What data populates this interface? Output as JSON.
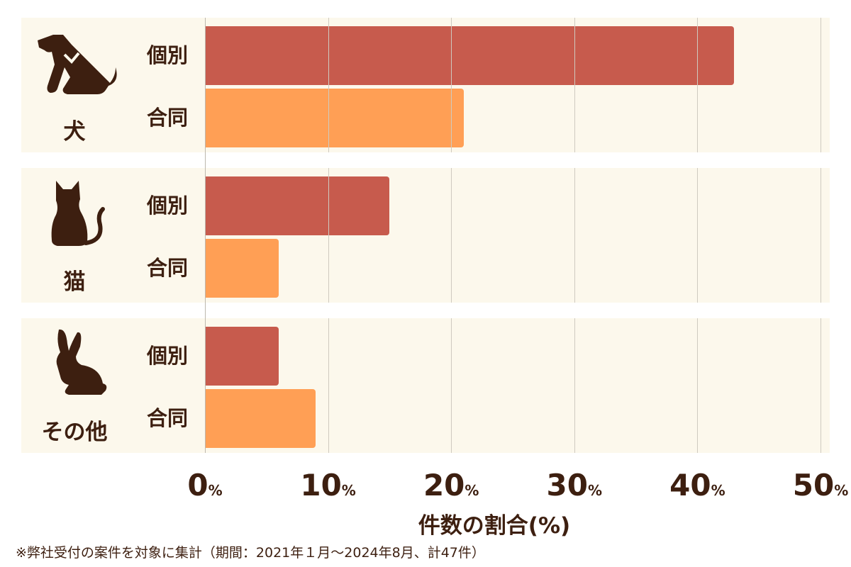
{
  "chart_data": {
    "type": "bar",
    "orientation": "horizontal",
    "groups": [
      {
        "name": "犬",
        "icon": "dog-icon",
        "bars": [
          {
            "label": "個別",
            "value": 43
          },
          {
            "label": "合同",
            "value": 21
          }
        ]
      },
      {
        "name": "猫",
        "icon": "cat-icon",
        "bars": [
          {
            "label": "個別",
            "value": 15
          },
          {
            "label": "合同",
            "value": 6
          }
        ]
      },
      {
        "name": "その他",
        "icon": "rabbit-icon",
        "bars": [
          {
            "label": "個別",
            "value": 6
          },
          {
            "label": "合同",
            "value": 9
          }
        ]
      }
    ],
    "xlim": [
      0,
      50
    ],
    "xticks": [
      "0",
      "10",
      "20",
      "30",
      "40",
      "50"
    ],
    "tick_unit": "%",
    "xlabel": "件数の割合(%)",
    "grid": true,
    "colors": {
      "個別": "#c75b4d",
      "合同": "#ff9f55"
    }
  },
  "footnote": "※弊社受付の案件を対象に集計（期間：2021年１月～2024年8月、計47件）"
}
